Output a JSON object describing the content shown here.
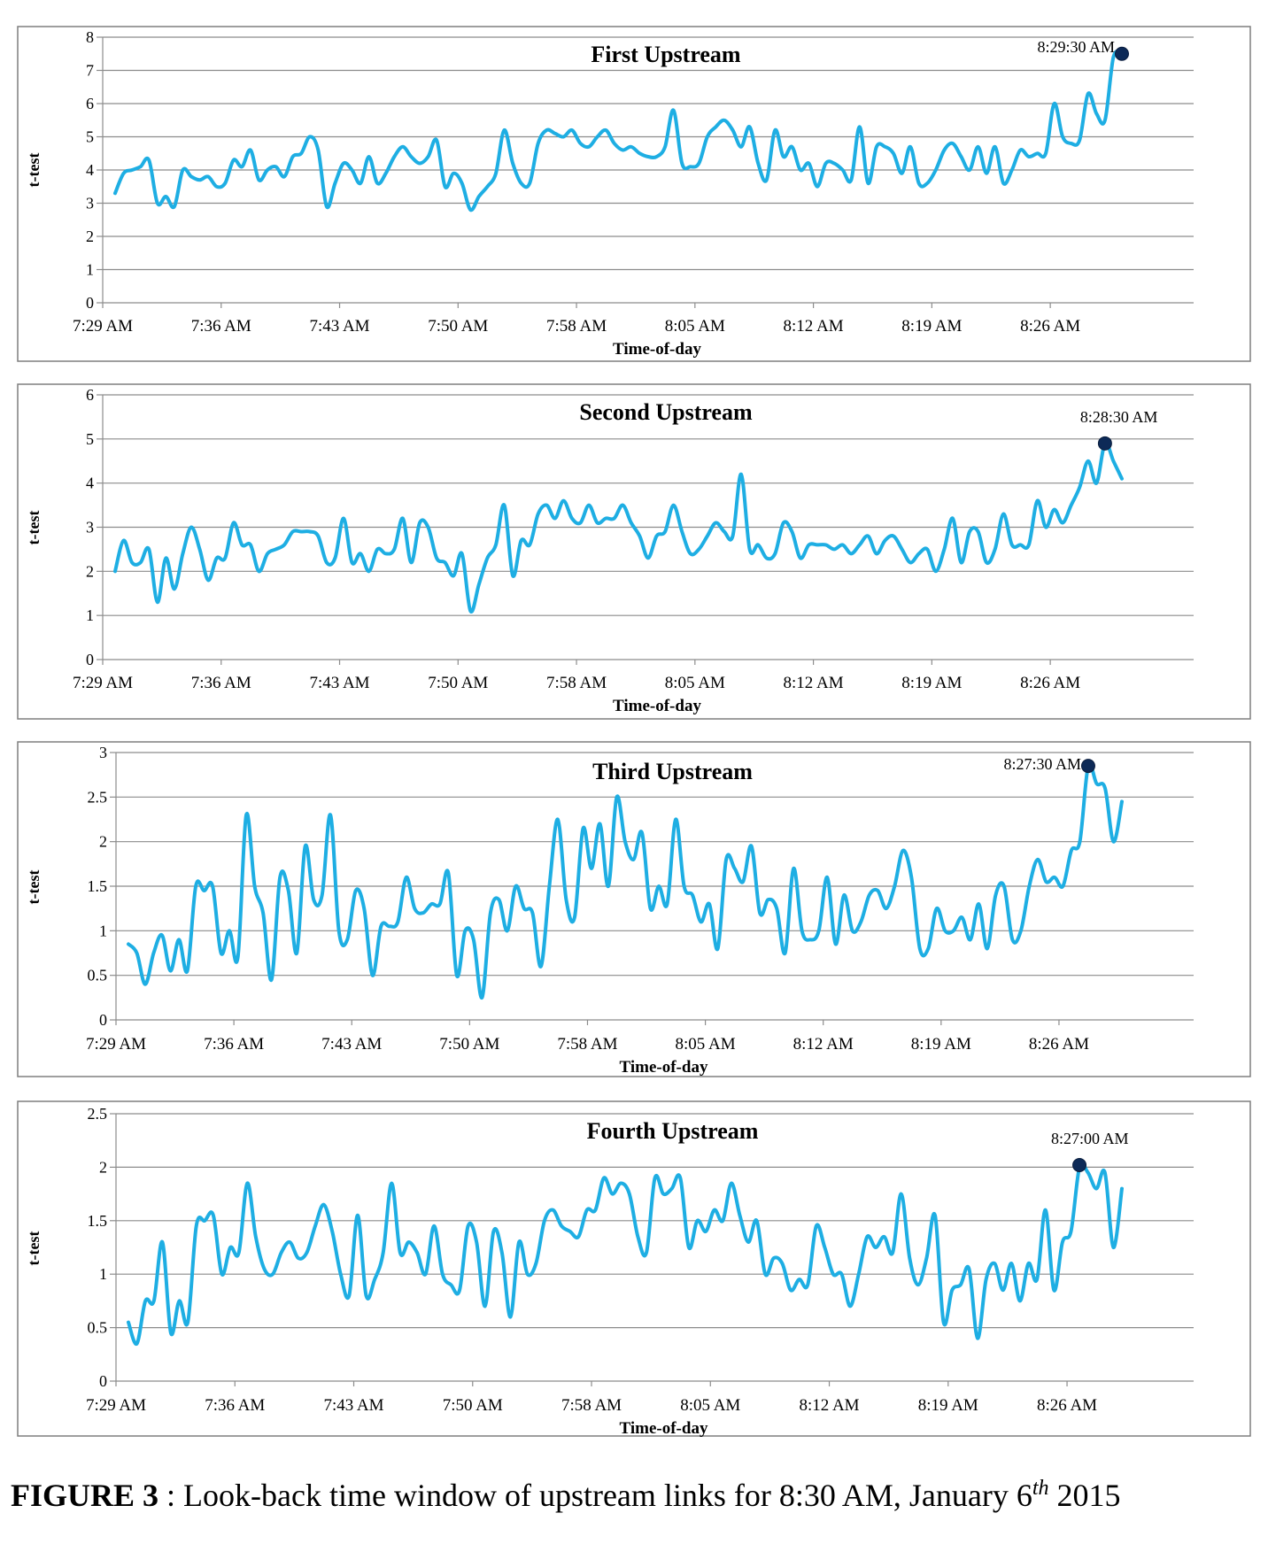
{
  "caption": {
    "label": "FIGURE 3",
    "sep": " : ",
    "text": "Look-back time window of upstream links for 8:30 AM, January 6",
    "sup": "th",
    "tail": " 2015"
  },
  "colors": {
    "line": "#1eaee3",
    "marker": "#0d2a57",
    "grid": "#8c8c8c",
    "frame": "#7f7f7f"
  },
  "chart_data": [
    {
      "type": "line",
      "title": "First Upstream",
      "xlabel": "Time-of-day",
      "ylabel": "t-test",
      "x_unit": "minutes",
      "xticks": [
        "7:29 AM",
        "7:36 AM",
        "7:43 AM",
        "7:50 AM",
        "7:58 AM",
        "8:05 AM",
        "8:12 AM",
        "8:19 AM",
        "8:26 AM"
      ],
      "yticks": [
        "0",
        "1",
        "2",
        "3",
        "4",
        "5",
        "6",
        "7",
        "8"
      ],
      "ylim": [
        0,
        8
      ],
      "grid": true,
      "annotation": {
        "label": "8:29:30 AM",
        "value": 7.5
      },
      "values": [
        3.3,
        3.9,
        4.0,
        4.1,
        4.3,
        3.0,
        3.2,
        2.9,
        4.0,
        3.8,
        3.7,
        3.8,
        3.5,
        3.6,
        4.3,
        4.1,
        4.6,
        3.7,
        4.0,
        4.1,
        3.8,
        4.4,
        4.5,
        5.0,
        4.6,
        2.9,
        3.6,
        4.2,
        4.0,
        3.6,
        4.4,
        3.6,
        3.9,
        4.4,
        4.7,
        4.4,
        4.2,
        4.4,
        4.9,
        3.5,
        3.9,
        3.6,
        2.8,
        3.2,
        3.5,
        3.9,
        5.2,
        4.2,
        3.6,
        3.6,
        4.8,
        5.2,
        5.1,
        5.0,
        5.2,
        4.8,
        4.7,
        5.0,
        5.2,
        4.8,
        4.6,
        4.7,
        4.5,
        4.4,
        4.4,
        4.7,
        5.8,
        4.2,
        4.1,
        4.2,
        5.0,
        5.3,
        5.5,
        5.2,
        4.7,
        5.3,
        4.2,
        3.7,
        5.2,
        4.4,
        4.7,
        4.0,
        4.2,
        3.5,
        4.2,
        4.2,
        4.0,
        3.7,
        5.3,
        3.6,
        4.7,
        4.7,
        4.5,
        3.9,
        4.7,
        3.6,
        3.6,
        4.0,
        4.6,
        4.8,
        4.4,
        4.0,
        4.7,
        3.9,
        4.7,
        3.6,
        4.0,
        4.6,
        4.4,
        4.5,
        4.5,
        6.0,
        5.0,
        4.8,
        4.9,
        6.3,
        5.7,
        5.5,
        7.4,
        7.5
      ]
    },
    {
      "type": "line",
      "title": "Second Upstream",
      "xlabel": "Time-of-day",
      "ylabel": "t-test",
      "x_unit": "minutes",
      "xticks": [
        "7:29 AM",
        "7:36 AM",
        "7:43 AM",
        "7:50 AM",
        "7:58 AM",
        "8:05 AM",
        "8:12 AM",
        "8:19 AM",
        "8:26 AM"
      ],
      "yticks": [
        "0",
        "1",
        "2",
        "3",
        "4",
        "5",
        "6"
      ],
      "ylim": [
        0,
        6
      ],
      "grid": true,
      "annotation": {
        "label": "8:28:30 AM",
        "value": 4.9
      },
      "values": [
        2.0,
        2.7,
        2.2,
        2.2,
        2.5,
        1.3,
        2.3,
        1.6,
        2.4,
        3.0,
        2.5,
        1.8,
        2.3,
        2.3,
        3.1,
        2.6,
        2.6,
        2.0,
        2.4,
        2.5,
        2.6,
        2.9,
        2.9,
        2.9,
        2.8,
        2.2,
        2.3,
        3.2,
        2.2,
        2.4,
        2.0,
        2.5,
        2.4,
        2.5,
        3.2,
        2.2,
        3.1,
        3.0,
        2.3,
        2.2,
        1.9,
        2.4,
        1.1,
        1.7,
        2.3,
        2.6,
        3.5,
        1.9,
        2.7,
        2.6,
        3.3,
        3.5,
        3.2,
        3.6,
        3.2,
        3.1,
        3.5,
        3.1,
        3.2,
        3.2,
        3.5,
        3.1,
        2.8,
        2.3,
        2.8,
        2.9,
        3.5,
        2.9,
        2.4,
        2.5,
        2.8,
        3.1,
        2.9,
        2.8,
        4.2,
        2.5,
        2.6,
        2.3,
        2.4,
        3.1,
        2.9,
        2.3,
        2.6,
        2.6,
        2.6,
        2.5,
        2.6,
        2.4,
        2.6,
        2.8,
        2.4,
        2.7,
        2.8,
        2.5,
        2.2,
        2.4,
        2.5,
        2.0,
        2.5,
        3.2,
        2.2,
        2.9,
        2.9,
        2.2,
        2.5,
        3.3,
        2.6,
        2.6,
        2.6,
        3.6,
        3.0,
        3.4,
        3.1,
        3.5,
        3.9,
        4.5,
        4.0,
        4.9,
        4.5,
        4.1
      ]
    },
    {
      "type": "line",
      "title": "Third Upstream",
      "xlabel": "Time-of-day",
      "ylabel": "t-test",
      "x_unit": "minutes",
      "xticks": [
        "7:29 AM",
        "7:36 AM",
        "7:43 AM",
        "7:50 AM",
        "7:58 AM",
        "8:05 AM",
        "8:12 AM",
        "8:19 AM",
        "8:26 AM"
      ],
      "yticks": [
        "0",
        "0.5",
        "1",
        "1.5",
        "2",
        "2.5",
        "3"
      ],
      "ylim": [
        0,
        3
      ],
      "grid": true,
      "annotation": {
        "label": "8:27:30 AM",
        "value": 2.85
      },
      "values": [
        0.85,
        0.75,
        0.4,
        0.75,
        0.95,
        0.55,
        0.9,
        0.55,
        1.5,
        1.45,
        1.5,
        0.75,
        1.0,
        0.7,
        2.3,
        1.5,
        1.2,
        0.45,
        1.6,
        1.45,
        0.75,
        1.95,
        1.35,
        1.4,
        2.3,
        1.0,
        0.9,
        1.45,
        1.25,
        0.5,
        1.05,
        1.05,
        1.1,
        1.6,
        1.25,
        1.2,
        1.3,
        1.3,
        1.65,
        0.5,
        1.0,
        0.9,
        0.25,
        1.2,
        1.35,
        1.0,
        1.5,
        1.25,
        1.2,
        0.6,
        1.5,
        2.25,
        1.35,
        1.15,
        2.15,
        1.7,
        2.2,
        1.5,
        2.5,
        2.0,
        1.8,
        2.1,
        1.25,
        1.5,
        1.3,
        2.25,
        1.5,
        1.4,
        1.1,
        1.3,
        0.8,
        1.8,
        1.7,
        1.55,
        1.95,
        1.2,
        1.35,
        1.25,
        0.75,
        1.7,
        1.0,
        0.9,
        1.0,
        1.6,
        0.85,
        1.4,
        1.0,
        1.1,
        1.4,
        1.45,
        1.25,
        1.5,
        1.9,
        1.6,
        0.8,
        0.8,
        1.25,
        1.0,
        1.0,
        1.15,
        0.9,
        1.3,
        0.8,
        1.4,
        1.5,
        0.9,
        1.0,
        1.5,
        1.8,
        1.55,
        1.6,
        1.5,
        1.9,
        2.0,
        2.85,
        2.65,
        2.6,
        2.0,
        2.45
      ]
    },
    {
      "type": "line",
      "title": "Fourth Upstream",
      "xlabel": "Time-of-day",
      "ylabel": "t-test",
      "x_unit": "minutes",
      "xticks": [
        "7:29 AM",
        "7:36 AM",
        "7:43 AM",
        "7:50 AM",
        "7:58 AM",
        "8:05 AM",
        "8:12 AM",
        "8:19 AM",
        "8:26 AM"
      ],
      "yticks": [
        "0",
        "0.5",
        "1",
        "1.5",
        "2",
        "2.5"
      ],
      "ylim": [
        0,
        2.5
      ],
      "grid": true,
      "annotation": {
        "label": "8:27:00 AM",
        "value": 2.02
      },
      "values": [
        0.55,
        0.35,
        0.75,
        0.75,
        1.3,
        0.45,
        0.75,
        0.55,
        1.45,
        1.5,
        1.55,
        1.0,
        1.25,
        1.2,
        1.85,
        1.35,
        1.05,
        1.0,
        1.2,
        1.3,
        1.15,
        1.2,
        1.45,
        1.65,
        1.4,
        1.0,
        0.8,
        1.55,
        0.8,
        0.95,
        1.2,
        1.85,
        1.2,
        1.3,
        1.2,
        1.0,
        1.45,
        1.0,
        0.9,
        0.85,
        1.45,
        1.3,
        0.7,
        1.4,
        1.2,
        0.6,
        1.3,
        1.0,
        1.1,
        1.5,
        1.6,
        1.45,
        1.4,
        1.35,
        1.6,
        1.6,
        1.9,
        1.75,
        1.85,
        1.75,
        1.35,
        1.2,
        1.9,
        1.75,
        1.8,
        1.9,
        1.25,
        1.5,
        1.4,
        1.6,
        1.5,
        1.85,
        1.55,
        1.3,
        1.5,
        1.0,
        1.15,
        1.1,
        0.85,
        0.95,
        0.9,
        1.45,
        1.25,
        1.0,
        1.0,
        0.7,
        1.0,
        1.35,
        1.25,
        1.35,
        1.2,
        1.75,
        1.15,
        0.9,
        1.15,
        1.55,
        0.55,
        0.85,
        0.9,
        1.05,
        0.4,
        0.95,
        1.1,
        0.85,
        1.1,
        0.75,
        1.1,
        0.95,
        1.6,
        0.85,
        1.3,
        1.4,
        2.0,
        1.95,
        1.8,
        1.95,
        1.25,
        1.8
      ]
    }
  ]
}
